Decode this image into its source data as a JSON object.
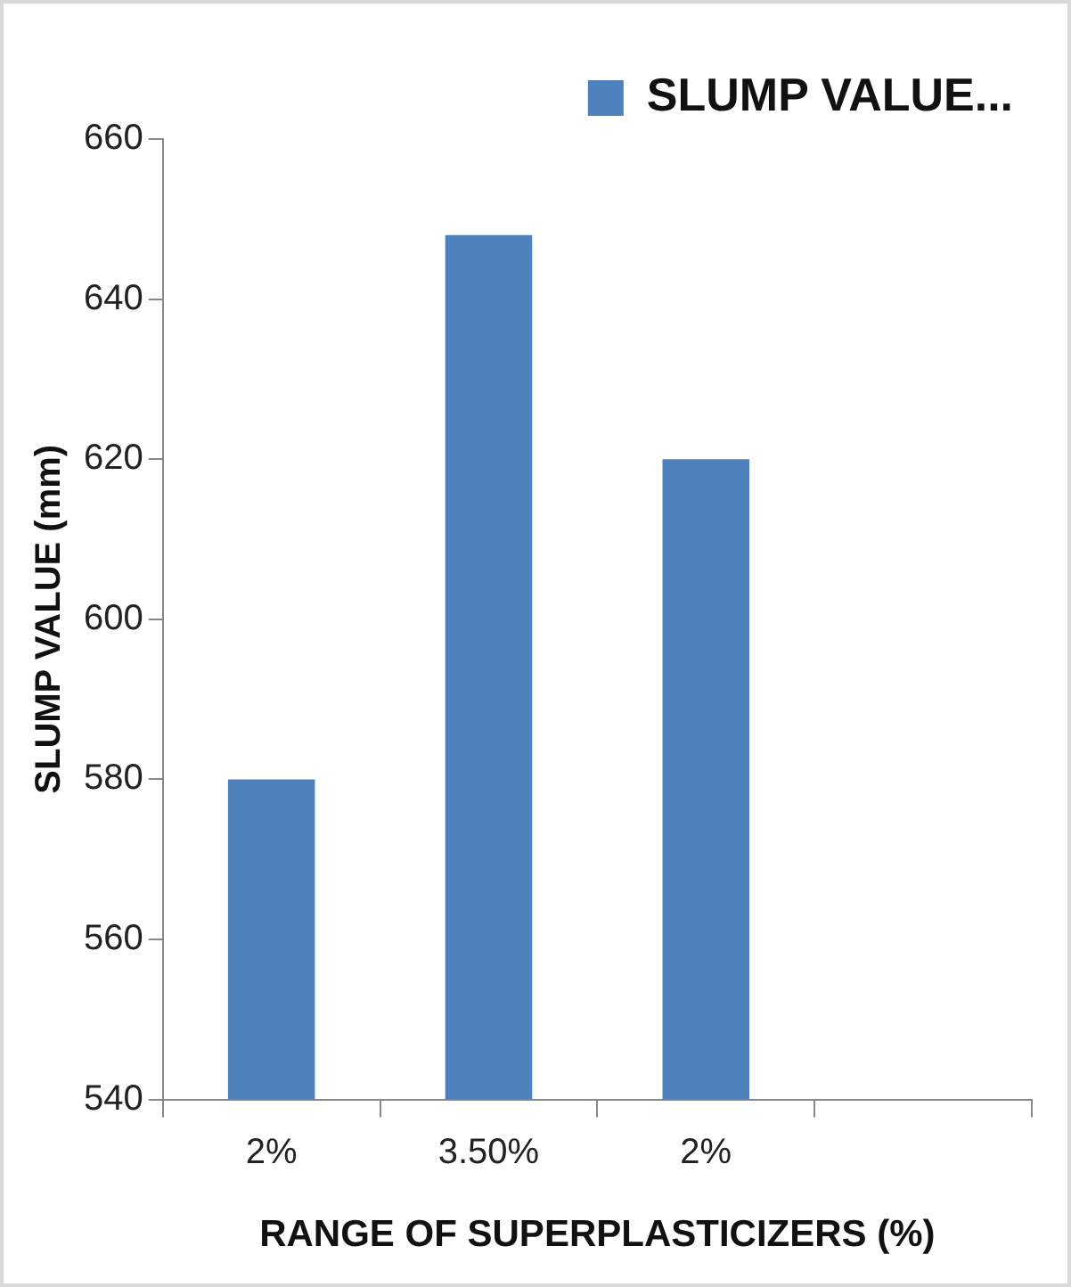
{
  "chart_data": {
    "type": "bar",
    "xlabel": "RANGE OF SUPERPLASTICIZERS (%)",
    "ylabel": "SLUMP VALUE (mm)",
    "categories": [
      "2%",
      "3.50%",
      "2%",
      null
    ],
    "series": [
      {
        "name": "SLUMP VALUE...",
        "color": "#4f81bd",
        "values": [
          580,
          648,
          620,
          null
        ]
      }
    ],
    "ylim": [
      540,
      660
    ],
    "yticks": [
      540,
      560,
      580,
      600,
      620,
      640,
      660
    ],
    "grid": false,
    "legend": "top right"
  }
}
